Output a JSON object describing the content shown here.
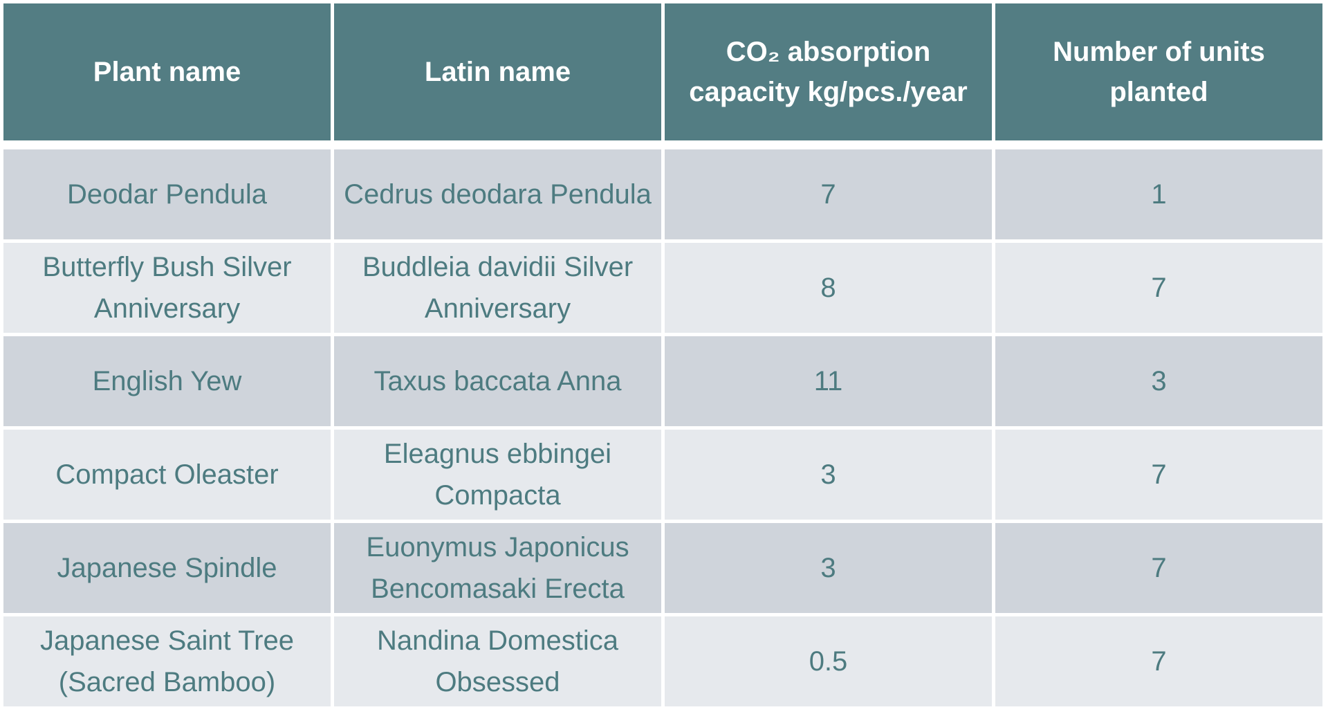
{
  "table": {
    "header": [
      "Plant name",
      "Latin name",
      "CO₂ absorption capacity kg/pcs./year",
      "Number of units planted"
    ],
    "rows": [
      [
        "Deodar Pendula",
        "Cedrus deodara Pendula",
        7,
        1
      ],
      [
        "Butterfly Bush Silver Anniversary",
        "Buddleia davidii Silver Anniversary",
        8,
        7
      ],
      [
        "English Yew",
        "Taxus baccata Anna",
        11,
        3
      ],
      [
        "Compact Oleaster",
        "Eleagnus ebbingei Compacta",
        3,
        7
      ],
      [
        "Japanese Spindle",
        "Euonymus Japonicus Bencomasaki Erecta",
        3,
        7
      ],
      [
        "Japanese Saint Tree (Sacred Bamboo)",
        "Nandina Domestica Obsessed",
        0.5,
        7
      ]
    ]
  }
}
